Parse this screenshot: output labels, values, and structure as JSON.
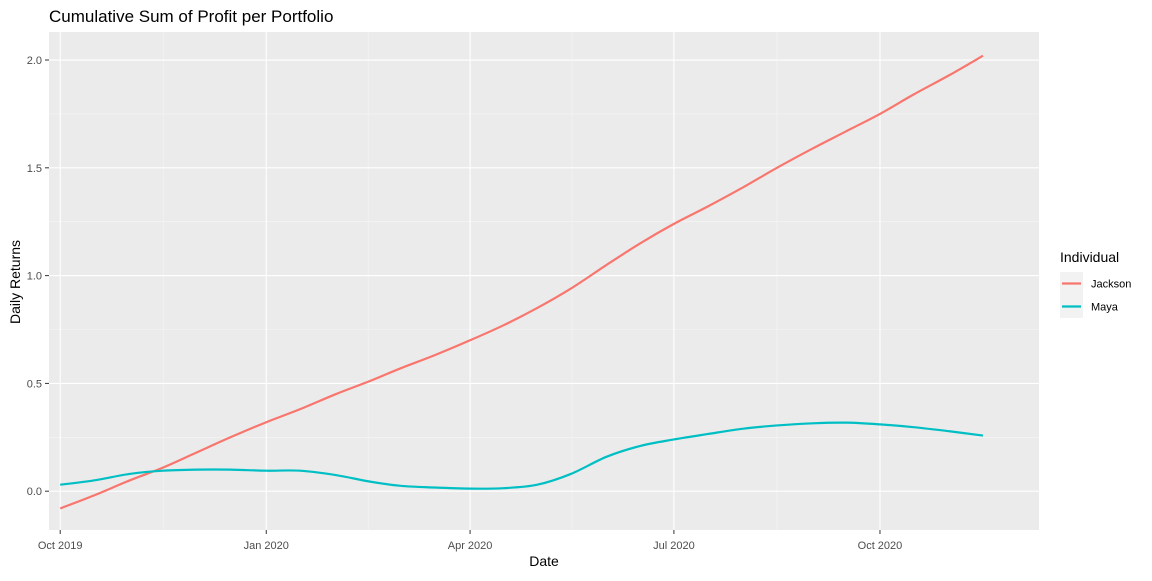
{
  "chart_data": {
    "type": "line",
    "title": "Cumulative Sum of Profit per Portfolio",
    "xlabel": "Date",
    "ylabel": "Daily Returns",
    "x_range": [
      "2019-09-26",
      "2020-12-11"
    ],
    "ylim": [
      -0.18,
      2.13
    ],
    "x_ticks": [
      {
        "date": "2019-10-01",
        "label": "Oct 2019"
      },
      {
        "date": "2020-01-01",
        "label": "Jan 2020"
      },
      {
        "date": "2020-04-01",
        "label": "Apr 2020"
      },
      {
        "date": "2020-07-01",
        "label": "Jul 2020"
      },
      {
        "date": "2020-10-01",
        "label": "Oct 2020"
      }
    ],
    "y_ticks": [
      {
        "value": 0.0,
        "label": "0.0"
      },
      {
        "value": 0.5,
        "label": "0.5"
      },
      {
        "value": 1.0,
        "label": "1.0"
      },
      {
        "value": 1.5,
        "label": "1.5"
      },
      {
        "value": 2.0,
        "label": "2.0"
      }
    ],
    "grid": true,
    "background": "#EBEBEB",
    "legend": {
      "title": "Individual",
      "position": "right"
    },
    "series": [
      {
        "name": "Jackson",
        "color": "#F8766D",
        "points": [
          [
            "2019-10-01",
            -0.08
          ],
          [
            "2019-10-16",
            -0.02
          ],
          [
            "2019-11-01",
            0.05
          ],
          [
            "2019-11-16",
            0.11
          ],
          [
            "2019-12-01",
            0.18
          ],
          [
            "2019-12-16",
            0.25
          ],
          [
            "2020-01-01",
            0.32
          ],
          [
            "2020-01-16",
            0.38
          ],
          [
            "2020-02-01",
            0.45
          ],
          [
            "2020-02-16",
            0.51
          ],
          [
            "2020-03-01",
            0.57
          ],
          [
            "2020-03-16",
            0.63
          ],
          [
            "2020-04-01",
            0.7
          ],
          [
            "2020-04-16",
            0.77
          ],
          [
            "2020-05-01",
            0.85
          ],
          [
            "2020-05-16",
            0.94
          ],
          [
            "2020-06-01",
            1.05
          ],
          [
            "2020-06-16",
            1.15
          ],
          [
            "2020-07-01",
            1.24
          ],
          [
            "2020-07-16",
            1.32
          ],
          [
            "2020-08-01",
            1.41
          ],
          [
            "2020-08-16",
            1.5
          ],
          [
            "2020-09-01",
            1.59
          ],
          [
            "2020-09-16",
            1.67
          ],
          [
            "2020-10-01",
            1.75
          ],
          [
            "2020-10-16",
            1.84
          ],
          [
            "2020-11-01",
            1.93
          ],
          [
            "2020-11-16",
            2.02
          ]
        ]
      },
      {
        "name": "Maya",
        "color": "#00BFC4",
        "points": [
          [
            "2019-10-01",
            0.03
          ],
          [
            "2019-10-16",
            0.05
          ],
          [
            "2019-11-01",
            0.08
          ],
          [
            "2019-11-16",
            0.095
          ],
          [
            "2019-12-01",
            0.1
          ],
          [
            "2019-12-16",
            0.1
          ],
          [
            "2020-01-01",
            0.095
          ],
          [
            "2020-01-16",
            0.095
          ],
          [
            "2020-02-01",
            0.075
          ],
          [
            "2020-02-16",
            0.045
          ],
          [
            "2020-03-01",
            0.025
          ],
          [
            "2020-03-16",
            0.017
          ],
          [
            "2020-04-01",
            0.012
          ],
          [
            "2020-04-16",
            0.014
          ],
          [
            "2020-05-01",
            0.03
          ],
          [
            "2020-05-16",
            0.08
          ],
          [
            "2020-06-01",
            0.16
          ],
          [
            "2020-06-16",
            0.21
          ],
          [
            "2020-07-01",
            0.24
          ],
          [
            "2020-07-16",
            0.265
          ],
          [
            "2020-08-01",
            0.29
          ],
          [
            "2020-08-16",
            0.305
          ],
          [
            "2020-09-01",
            0.315
          ],
          [
            "2020-09-16",
            0.318
          ],
          [
            "2020-10-01",
            0.31
          ],
          [
            "2020-10-16",
            0.297
          ],
          [
            "2020-11-01",
            0.278
          ],
          [
            "2020-11-16",
            0.258
          ]
        ]
      }
    ]
  }
}
